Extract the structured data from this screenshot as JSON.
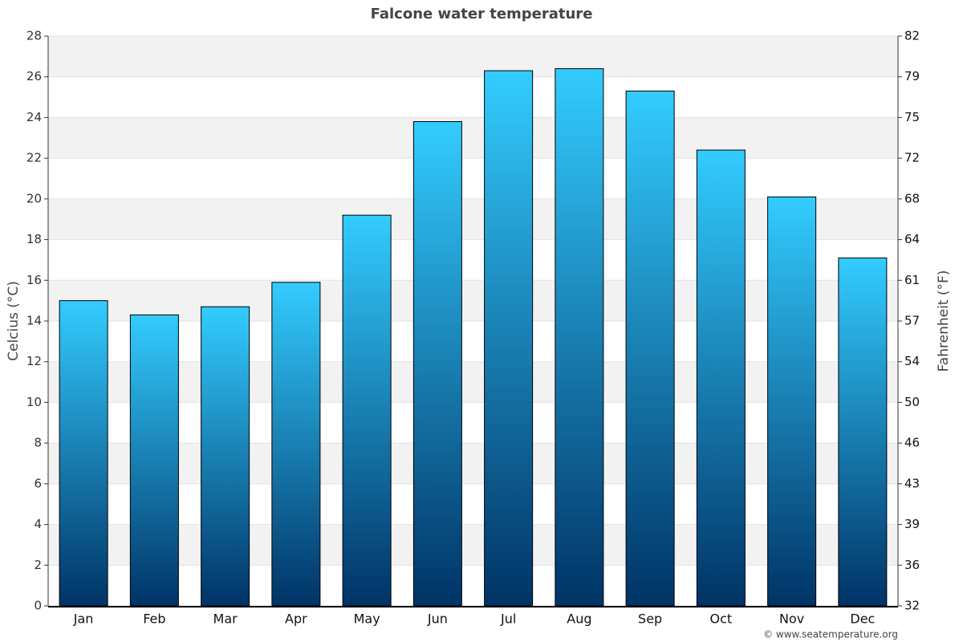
{
  "chart_data": {
    "type": "bar",
    "title": "Falcone water temperature",
    "y_label": "Celcius (°C)",
    "y2_label": "Fahrenheit (°F)",
    "categories": [
      "Jan",
      "Feb",
      "Mar",
      "Apr",
      "May",
      "Jun",
      "Jul",
      "Aug",
      "Sep",
      "Oct",
      "Nov",
      "Dec"
    ],
    "values": [
      15.0,
      14.3,
      14.7,
      15.9,
      19.2,
      23.8,
      26.3,
      26.4,
      25.3,
      22.4,
      20.1,
      17.1
    ],
    "color": [
      "#33ccff",
      "#003366"
    ],
    "ylim": [
      0,
      28
    ],
    "yticks": [
      0,
      2,
      4,
      6,
      8,
      10,
      12,
      14,
      16,
      18,
      20,
      22,
      24,
      26,
      28
    ],
    "y2lim": [
      32,
      82.4
    ],
    "y2ticks": [
      32,
      {
        "value": 35.6,
        "label": "36"
      },
      {
        "value": 39.2,
        "label": "39"
      },
      {
        "value": 42.8,
        "label": "43"
      },
      {
        "value": 46.4,
        "label": "46"
      },
      50,
      {
        "value": 53.6,
        "label": "54"
      },
      {
        "value": 57.2,
        "label": "57"
      },
      {
        "value": 60.8,
        "label": "61"
      },
      {
        "value": 64.4,
        "label": "64"
      },
      68,
      {
        "value": 71.6,
        "label": "72"
      },
      {
        "value": 75.2,
        "label": "75"
      },
      {
        "value": 78.8,
        "label": "79"
      },
      {
        "value": 82.4,
        "label": "82"
      }
    ],
    "grid": true,
    "credit": "© www.seatemperature.org"
  }
}
